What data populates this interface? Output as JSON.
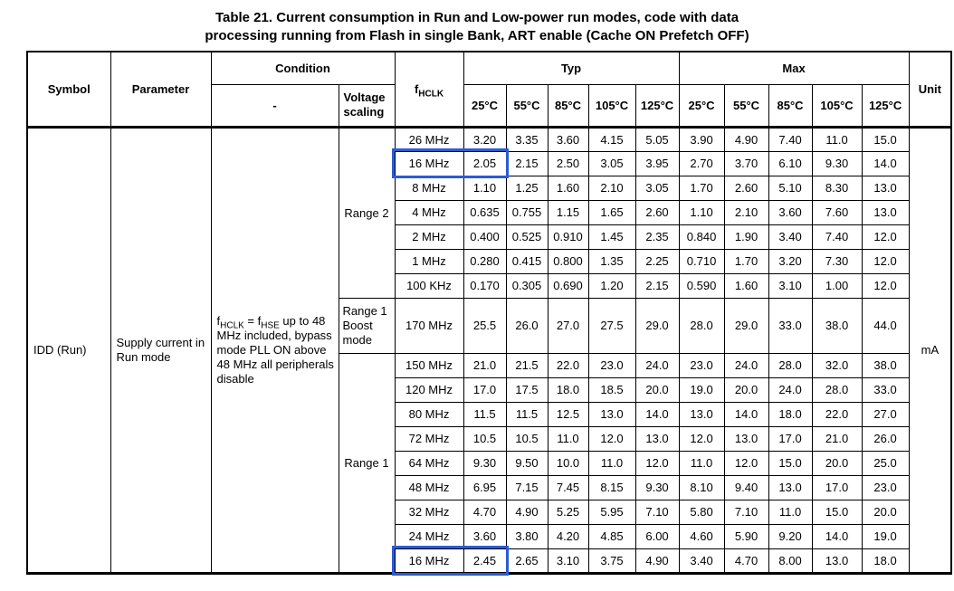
{
  "title": {
    "line1": "Table 21. Current consumption in Run and Low-power run modes, code with data",
    "line2": "processing running from Flash in single Bank, ART enable (Cache ON Prefetch OFF)"
  },
  "colors": {
    "highlight": "#2B5CD5",
    "border": "#000000"
  },
  "table": {
    "headers": {
      "symbol": "Symbol",
      "parameter": "Parameter",
      "condition": "Condition",
      "condition_sub": "-",
      "voltage_scaling": "Voltage scaling",
      "fhclk": {
        "base": "f",
        "sub": "HCLK"
      },
      "typ": "Typ",
      "max": "Max",
      "unit": "Unit",
      "temps": [
        "25°C",
        "55°C",
        "85°C",
        "105°C",
        "125°C"
      ]
    },
    "symbol_value": "IDD (Run)",
    "parameter_value": "Supply current in Run mode",
    "condition_value": [
      {
        "t": "f"
      },
      {
        "t": "HCLK",
        "sub": true
      },
      {
        "t": " = f"
      },
      {
        "t": "HSE",
        "sub": true
      },
      {
        "t": " up to 48 MHz included, bypass mode PLL ON above 48 MHz all peripherals disable"
      }
    ],
    "unit_value": "mA",
    "voltage_groups": [
      {
        "label": "Range 2",
        "rows": 7
      },
      {
        "label": "Range 1 Boost mode",
        "rows": 1
      },
      {
        "label": "Range 1",
        "rows": 9
      }
    ],
    "rows": [
      {
        "fhclk": "26 MHz",
        "typ": [
          "3.20",
          "3.35",
          "3.60",
          "4.15",
          "5.05"
        ],
        "max": [
          "3.90",
          "4.90",
          "7.40",
          "11.0",
          "15.0"
        ],
        "highlighted": false
      },
      {
        "fhclk": "16 MHz",
        "typ": [
          "2.05",
          "2.15",
          "2.50",
          "3.05",
          "3.95"
        ],
        "max": [
          "2.70",
          "3.70",
          "6.10",
          "9.30",
          "14.0"
        ],
        "highlighted": true
      },
      {
        "fhclk": "8 MHz",
        "typ": [
          "1.10",
          "1.25",
          "1.60",
          "2.10",
          "3.05"
        ],
        "max": [
          "1.70",
          "2.60",
          "5.10",
          "8.30",
          "13.0"
        ],
        "highlighted": false
      },
      {
        "fhclk": "4 MHz",
        "typ": [
          "0.635",
          "0.755",
          "1.15",
          "1.65",
          "2.60"
        ],
        "max": [
          "1.10",
          "2.10",
          "3.60",
          "7.60",
          "13.0"
        ],
        "highlighted": false
      },
      {
        "fhclk": "2 MHz",
        "typ": [
          "0.400",
          "0.525",
          "0.910",
          "1.45",
          "2.35"
        ],
        "max": [
          "0.840",
          "1.90",
          "3.40",
          "7.40",
          "12.0"
        ],
        "highlighted": false
      },
      {
        "fhclk": "1 MHz",
        "typ": [
          "0.280",
          "0.415",
          "0.800",
          "1.35",
          "2.25"
        ],
        "max": [
          "0.710",
          "1.70",
          "3.20",
          "7.30",
          "12.0"
        ],
        "highlighted": false
      },
      {
        "fhclk": "100 KHz",
        "typ": [
          "0.170",
          "0.305",
          "0.690",
          "1.20",
          "2.15"
        ],
        "max": [
          "0.590",
          "1.60",
          "3.10",
          "1.00",
          "12.0"
        ],
        "highlighted": false
      },
      {
        "fhclk": "170 MHz",
        "typ": [
          "25.5",
          "26.0",
          "27.0",
          "27.5",
          "29.0"
        ],
        "max": [
          "28.0",
          "29.0",
          "33.0",
          "38.0",
          "44.0"
        ],
        "highlighted": false
      },
      {
        "fhclk": "150 MHz",
        "typ": [
          "21.0",
          "21.5",
          "22.0",
          "23.0",
          "24.0"
        ],
        "max": [
          "23.0",
          "24.0",
          "28.0",
          "32.0",
          "38.0"
        ],
        "highlighted": false
      },
      {
        "fhclk": "120 MHz",
        "typ": [
          "17.0",
          "17.5",
          "18.0",
          "18.5",
          "20.0"
        ],
        "max": [
          "19.0",
          "20.0",
          "24.0",
          "28.0",
          "33.0"
        ],
        "highlighted": false
      },
      {
        "fhclk": "80 MHz",
        "typ": [
          "11.5",
          "11.5",
          "12.5",
          "13.0",
          "14.0"
        ],
        "max": [
          "13.0",
          "14.0",
          "18.0",
          "22.0",
          "27.0"
        ],
        "highlighted": false
      },
      {
        "fhclk": "72 MHz",
        "typ": [
          "10.5",
          "10.5",
          "11.0",
          "12.0",
          "13.0"
        ],
        "max": [
          "12.0",
          "13.0",
          "17.0",
          "21.0",
          "26.0"
        ],
        "highlighted": false
      },
      {
        "fhclk": "64 MHz",
        "typ": [
          "9.30",
          "9.50",
          "10.0",
          "11.0",
          "12.0"
        ],
        "max": [
          "11.0",
          "12.0",
          "15.0",
          "20.0",
          "25.0"
        ],
        "highlighted": false
      },
      {
        "fhclk": "48 MHz",
        "typ": [
          "6.95",
          "7.15",
          "7.45",
          "8.15",
          "9.30"
        ],
        "max": [
          "8.10",
          "9.40",
          "13.0",
          "17.0",
          "23.0"
        ],
        "highlighted": false
      },
      {
        "fhclk": "32 MHz",
        "typ": [
          "4.70",
          "4.90",
          "5.25",
          "5.95",
          "7.10"
        ],
        "max": [
          "5.80",
          "7.10",
          "11.0",
          "15.0",
          "20.0"
        ],
        "highlighted": false
      },
      {
        "fhclk": "24 MHz",
        "typ": [
          "3.60",
          "3.80",
          "4.20",
          "4.85",
          "6.00"
        ],
        "max": [
          "4.60",
          "5.90",
          "9.20",
          "14.0",
          "19.0"
        ],
        "highlighted": false
      },
      {
        "fhclk": "16 MHz",
        "typ": [
          "2.45",
          "2.65",
          "3.10",
          "3.75",
          "4.90"
        ],
        "max": [
          "3.40",
          "4.70",
          "8.00",
          "13.0",
          "18.0"
        ],
        "highlighted": true
      }
    ]
  }
}
